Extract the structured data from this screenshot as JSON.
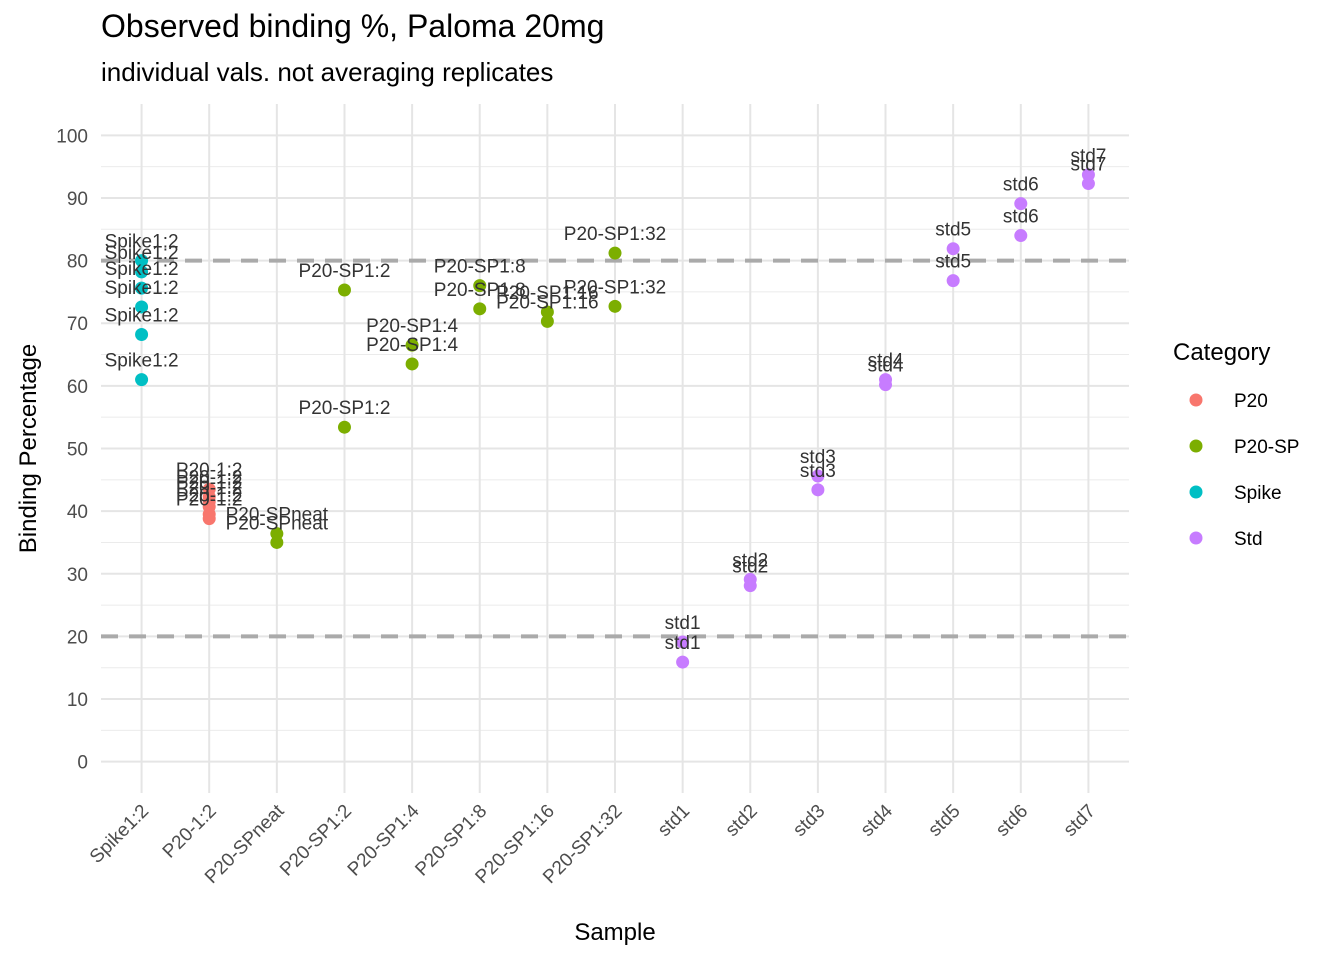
{
  "chart_data": {
    "type": "scatter",
    "title": "Observed binding %, Paloma 20mg",
    "subtitle": "individual vals. not averaging replicates",
    "xlabel": "Sample",
    "ylabel": "Binding Percentage",
    "categories": [
      "Spike1:2",
      "P20-1:2",
      "P20-SPneat",
      "P20-SP1:2",
      "P20-SP1:4",
      "P20-SP1:8",
      "P20-SP1:16",
      "P20-SP1:32",
      "std1",
      "std2",
      "std3",
      "std4",
      "std5",
      "std6",
      "std7"
    ],
    "ylim": [
      -5,
      105
    ],
    "yticks": [
      0,
      10,
      20,
      30,
      40,
      50,
      60,
      70,
      80,
      90,
      100
    ],
    "grid": true,
    "hlines": [
      20,
      80
    ],
    "legend": {
      "title": "Category",
      "position": "right",
      "entries": [
        {
          "name": "P20",
          "color": "#F8766D"
        },
        {
          "name": "P20-SP",
          "color": "#7CAE00"
        },
        {
          "name": "Spike",
          "color": "#00BFC4"
        },
        {
          "name": "Std",
          "color": "#C77CFF"
        }
      ]
    },
    "series": [
      {
        "name": "P20",
        "color": "#F8766D",
        "points": [
          {
            "x": "P20-1:2",
            "y": 43.5,
            "label": "P20-1:2"
          },
          {
            "x": "P20-1:2",
            "y": 42.3,
            "label": "P20-1:2"
          },
          {
            "x": "P20-1:2",
            "y": 41.5,
            "label": "P20-1:2"
          },
          {
            "x": "P20-1:2",
            "y": 40.7,
            "label": "P20-1:2"
          },
          {
            "x": "P20-1:2",
            "y": 39.5,
            "label": "P20-1:2"
          },
          {
            "x": "P20-1:2",
            "y": 38.8,
            "label": "P20-1:2"
          }
        ]
      },
      {
        "name": "P20-SP",
        "color": "#7CAE00",
        "points": [
          {
            "x": "P20-SPneat",
            "y": 36.4,
            "label": "P20-SPneat"
          },
          {
            "x": "P20-SPneat",
            "y": 35.0,
            "label": "P20-SPneat"
          },
          {
            "x": "P20-SP1:2",
            "y": 75.3,
            "label": "P20-SP1:2"
          },
          {
            "x": "P20-SP1:2",
            "y": 53.4,
            "label": "P20-SP1:2"
          },
          {
            "x": "P20-SP1:4",
            "y": 66.5,
            "label": "P20-SP1:4"
          },
          {
            "x": "P20-SP1:4",
            "y": 63.5,
            "label": "P20-SP1:4"
          },
          {
            "x": "P20-SP1:8",
            "y": 76.0,
            "label": "P20-SP1:8"
          },
          {
            "x": "P20-SP1:8",
            "y": 72.3,
            "label": "P20-SP1:8"
          },
          {
            "x": "P20-SP1:16",
            "y": 71.8,
            "label": "P20-SP1:16"
          },
          {
            "x": "P20-SP1:16",
            "y": 70.3,
            "label": "P20-SP1:16"
          },
          {
            "x": "P20-SP1:32",
            "y": 81.2,
            "label": "P20-SP1:32"
          },
          {
            "x": "P20-SP1:32",
            "y": 72.7,
            "label": "P20-SP1:32"
          }
        ]
      },
      {
        "name": "Spike",
        "color": "#00BFC4",
        "points": [
          {
            "x": "Spike1:2",
            "y": 80.0,
            "label": "Spike1:2"
          },
          {
            "x": "Spike1:2",
            "y": 78.2,
            "label": "Spike1:2"
          },
          {
            "x": "Spike1:2",
            "y": 75.6,
            "label": "Spike1:2"
          },
          {
            "x": "Spike1:2",
            "y": 72.6,
            "label": "Spike1:2"
          },
          {
            "x": "Spike1:2",
            "y": 68.2,
            "label": "Spike1:2"
          },
          {
            "x": "Spike1:2",
            "y": 61.0,
            "label": "Spike1:2"
          }
        ]
      },
      {
        "name": "Std",
        "color": "#C77CFF",
        "points": [
          {
            "x": "std1",
            "y": 19.1,
            "label": "std1"
          },
          {
            "x": "std1",
            "y": 15.9,
            "label": "std1"
          },
          {
            "x": "std2",
            "y": 29.1,
            "label": "std2"
          },
          {
            "x": "std2",
            "y": 28.1,
            "label": "std2"
          },
          {
            "x": "std3",
            "y": 45.6,
            "label": "std3"
          },
          {
            "x": "std3",
            "y": 43.4,
            "label": "std3"
          },
          {
            "x": "std4",
            "y": 61.0,
            "label": "std4"
          },
          {
            "x": "std4",
            "y": 60.2,
            "label": "std4"
          },
          {
            "x": "std5",
            "y": 81.9,
            "label": "std5"
          },
          {
            "x": "std5",
            "y": 76.8,
            "label": "std5"
          },
          {
            "x": "std6",
            "y": 89.1,
            "label": "std6"
          },
          {
            "x": "std6",
            "y": 84.0,
            "label": "std6"
          },
          {
            "x": "std7",
            "y": 93.7,
            "label": "std7"
          },
          {
            "x": "std7",
            "y": 92.3,
            "label": "std7"
          }
        ]
      }
    ]
  }
}
